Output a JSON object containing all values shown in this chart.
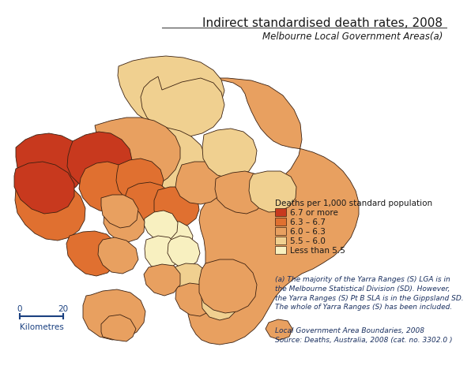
{
  "title": "Indirect standardised death rates, 2008",
  "subtitle": "Melbourne Local Government Areas(a)",
  "legend_title": "Deaths per 1,000 standard population",
  "legend_items": [
    {
      "label": "6.7 or more",
      "color": "#c8391e"
    },
    {
      "label": "6.3 – 6.7",
      "color": "#e07030"
    },
    {
      "label": "6.0 – 6.3",
      "color": "#e8a060"
    },
    {
      "label": "5.5 – 6.0",
      "color": "#f0d090"
    },
    {
      "label": "Less than 5.5",
      "color": "#f8f0c0"
    }
  ],
  "footnote_a": "(a) The majority of the Yarra Ranges (S) LGA is in\nthe Melbourne Statistical Division (SD). However,\nthe Yarra Ranges (S) Pt B SLA is in the Gippsland SD.\nThe whole of Yarra Ranges (S) has been included.",
  "footnote_b": "Local Government Area Boundaries, 2008\nSource: Deaths, Australia, 2008 (cat. no. 3302.0 )",
  "scale_label": "Kilometres",
  "scale_0": "0",
  "scale_20": "20",
  "bg_color": "#ffffff",
  "border_color": "#3a2010",
  "title_color": "#1a1a1a",
  "subtitle_color": "#1a1a1a",
  "footnote_color": "#1a3060",
  "scale_color": "#1a4080",
  "title_fontsize": 11,
  "subtitle_fontsize": 8.5,
  "legend_title_fontsize": 7.5,
  "legend_item_fontsize": 7.5,
  "footnote_fontsize": 6.5,
  "scale_fontsize": 7.5
}
